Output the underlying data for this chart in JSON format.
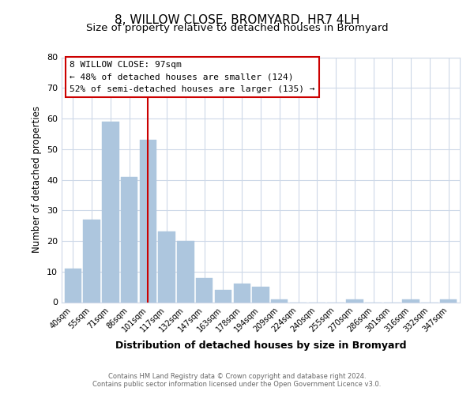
{
  "title": "8, WILLOW CLOSE, BROMYARD, HR7 4LH",
  "subtitle": "Size of property relative to detached houses in Bromyard",
  "xlabel": "Distribution of detached houses by size in Bromyard",
  "ylabel": "Number of detached properties",
  "categories": [
    "40sqm",
    "55sqm",
    "71sqm",
    "86sqm",
    "101sqm",
    "117sqm",
    "132sqm",
    "147sqm",
    "163sqm",
    "178sqm",
    "194sqm",
    "209sqm",
    "224sqm",
    "240sqm",
    "255sqm",
    "270sqm",
    "286sqm",
    "301sqm",
    "316sqm",
    "332sqm",
    "347sqm"
  ],
  "values": [
    11,
    27,
    59,
    41,
    53,
    23,
    20,
    8,
    4,
    6,
    5,
    1,
    0,
    0,
    0,
    1,
    0,
    0,
    1,
    0,
    1
  ],
  "bar_color": "#adc6de",
  "highlight_bar_index": 4,
  "highlight_line_color": "#cc0000",
  "ylim": [
    0,
    80
  ],
  "yticks": [
    0,
    10,
    20,
    30,
    40,
    50,
    60,
    70,
    80
  ],
  "annotation_title": "8 WILLOW CLOSE: 97sqm",
  "annotation_line1": "← 48% of detached houses are smaller (124)",
  "annotation_line2": "52% of semi-detached houses are larger (135) →",
  "annotation_box_color": "#ffffff",
  "annotation_box_edge_color": "#cc0000",
  "footer_line1": "Contains HM Land Registry data © Crown copyright and database right 2024.",
  "footer_line2": "Contains public sector information licensed under the Open Government Licence v3.0.",
  "background_color": "#ffffff",
  "grid_color": "#cdd8e8",
  "title_fontsize": 11,
  "subtitle_fontsize": 9.5
}
